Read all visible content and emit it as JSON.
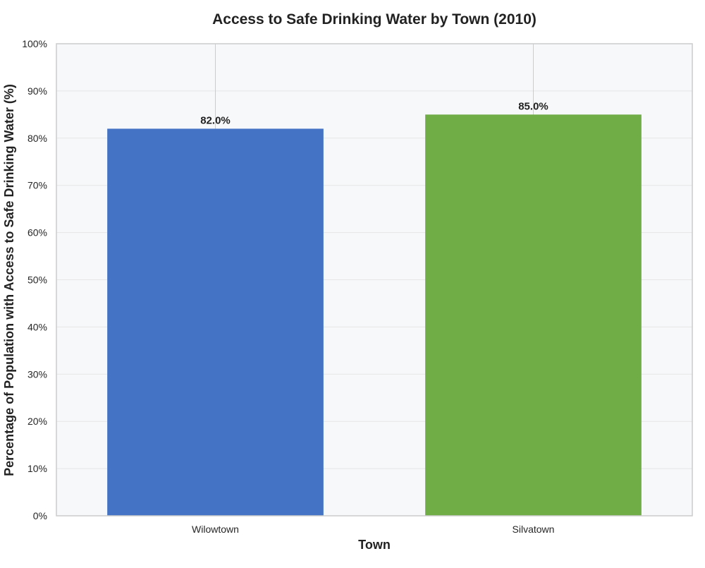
{
  "chart_data": {
    "type": "bar",
    "title": "Access to Safe Drinking Water by Town (2010)",
    "xlabel": "Town",
    "ylabel": "Percentage of Population with Access to Safe Drinking Water (%)",
    "categories": [
      "Wilowtown",
      "Silvatown"
    ],
    "values": [
      82.0,
      85.0
    ],
    "value_labels": [
      "82.0%",
      "85.0%"
    ],
    "colors": [
      "#4472c4",
      "#70ad47"
    ],
    "ylim": [
      0,
      100
    ],
    "yticks": [
      0,
      10,
      20,
      30,
      40,
      50,
      60,
      70,
      80,
      90,
      100
    ],
    "ytick_labels": [
      "0%",
      "10%",
      "20%",
      "30%",
      "40%",
      "50%",
      "60%",
      "70%",
      "80%",
      "90%",
      "100%"
    ],
    "grid": true,
    "legend": "none",
    "plot_background": "#f7f8fa",
    "grid_color": "#e6e6e6",
    "x_grid_color": "#cccccc",
    "frame_color": "#cccccc"
  }
}
